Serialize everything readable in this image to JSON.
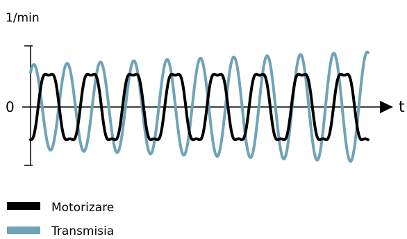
{
  "chart_data": {
    "type": "line",
    "ylabel": "1/min",
    "xlabel": "t",
    "y_tick_labels": [
      "0"
    ],
    "grid": false,
    "legend_position": "bottom-left",
    "series": [
      {
        "name": "Motorizare",
        "color": "#000000",
        "period_t": 1.0,
        "amplitude": 1.0,
        "t_range": [
          0,
          8
        ]
      },
      {
        "name": "Transmisia",
        "color": "#6fa3b8",
        "period_t": 0.79,
        "amplitude_start": 1.0,
        "amplitude_end": 1.3,
        "t_range": [
          0,
          8
        ]
      }
    ]
  }
}
